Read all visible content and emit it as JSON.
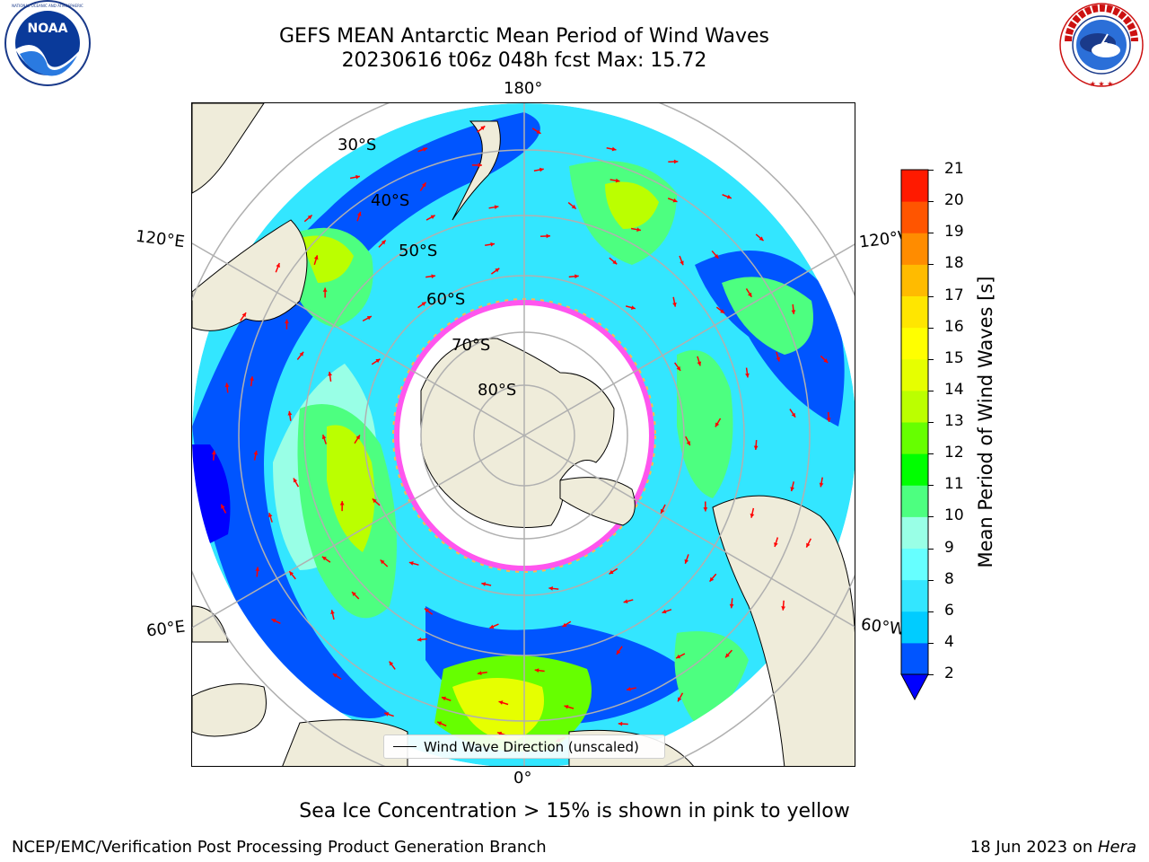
{
  "title": {
    "line1": "GEFS MEAN Antarctic Mean Period of Wind Waves",
    "line2": "20230616 t06z 048h fcst   Max: 15.72"
  },
  "longitude_labels": [
    "180°",
    "120°E",
    "120°W",
    "60°E",
    "60°W",
    "0°"
  ],
  "latitude_labels": [
    "30°S",
    "40°S",
    "50°S",
    "60°S",
    "70°S",
    "80°S"
  ],
  "legend": {
    "label": "Wind Wave Direction (unscaled)"
  },
  "colorbar": {
    "label": "Mean Period of Wind Waves [s]",
    "ticks": [
      "2",
      "4",
      "6",
      "8",
      "9",
      "10",
      "11",
      "12",
      "13",
      "14",
      "15",
      "16",
      "17",
      "18",
      "19",
      "20",
      "21"
    ],
    "levels": [
      2,
      4,
      6,
      8,
      9,
      10,
      11,
      12,
      13,
      14,
      15,
      16,
      17,
      18,
      19,
      20,
      21
    ],
    "colors": [
      "#0055ff",
      "#00ccff",
      "#33e6ff",
      "#66ffff",
      "#99ffe6",
      "#4dff80",
      "#00ff00",
      "#66ff00",
      "#bbff00",
      "#e6ff00",
      "#ffff00",
      "#ffe600",
      "#ffbb00",
      "#ff8c00",
      "#ff5500",
      "#ff1a00"
    ],
    "extend_min_color": "#0000ff"
  },
  "note": "Sea Ice Concentration > 15% is shown in pink to yellow",
  "footer": {
    "left": "NCEP/EMC/Verification Post Processing Product Generation Branch",
    "right_date": "18 Jun 2023 on ",
    "right_host": "Hera"
  },
  "logos": {
    "noaa": {
      "text": "NOAA",
      "ring_text": "NATIONAL OCEANIC AND ATMOSPHERIC ADMINISTRATION · U.S. DEPARTMENT OF COMMERCE"
    },
    "nws": {
      "ring_text": "NATIONAL WEATHER SERVICE"
    }
  },
  "colors": {
    "land": "#efecda",
    "grid": "#b0b0b0",
    "arrow": "#ff0000",
    "sea_ice_pink": "#ff55ee",
    "sea_ice_orange": "#ffb84d"
  }
}
